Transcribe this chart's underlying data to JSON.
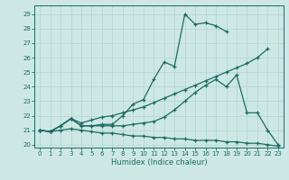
{
  "title": "",
  "xlabel": "Humidex (Indice chaleur)",
  "bg_color": "#cde8e4",
  "line_color": "#1a6b60",
  "grid_color": "#b0d4cf",
  "xlim": [
    -0.5,
    23.5
  ],
  "ylim": [
    19.8,
    29.6
  ],
  "yticks": [
    20,
    21,
    22,
    23,
    24,
    25,
    26,
    27,
    28,
    29
  ],
  "xticks": [
    0,
    1,
    2,
    3,
    4,
    5,
    6,
    7,
    8,
    9,
    10,
    11,
    12,
    13,
    14,
    15,
    16,
    17,
    18,
    19,
    20,
    21,
    22,
    23
  ],
  "line1_x": [
    0,
    1,
    2,
    3,
    4,
    5,
    6,
    7,
    8,
    9,
    10,
    11,
    12,
    13,
    14,
    15,
    16,
    17,
    18
  ],
  "line1_y": [
    21.0,
    20.9,
    21.3,
    21.8,
    21.3,
    21.3,
    21.4,
    21.4,
    22.0,
    22.8,
    23.1,
    24.5,
    25.7,
    25.4,
    29.0,
    28.3,
    28.4,
    28.2,
    27.8
  ],
  "line2_x": [
    0,
    1,
    2,
    3,
    4,
    5,
    6,
    7,
    8,
    9,
    10,
    11,
    12,
    13,
    14,
    15,
    16,
    17,
    18,
    19,
    20,
    21,
    22
  ],
  "line2_y": [
    21.0,
    20.9,
    21.3,
    21.8,
    21.5,
    21.7,
    21.9,
    22.0,
    22.2,
    22.4,
    22.6,
    22.9,
    23.2,
    23.5,
    23.8,
    24.1,
    24.4,
    24.7,
    25.0,
    25.3,
    25.6,
    26.0,
    26.6
  ],
  "line3_x": [
    0,
    1,
    2,
    3,
    4,
    5,
    6,
    7,
    8,
    9,
    10,
    11,
    12,
    13,
    14,
    15,
    16,
    17,
    18,
    19,
    20,
    21,
    22,
    23
  ],
  "line3_y": [
    21.0,
    20.9,
    21.3,
    21.8,
    21.3,
    21.3,
    21.3,
    21.3,
    21.3,
    21.4,
    21.5,
    21.6,
    21.9,
    22.4,
    23.0,
    23.6,
    24.1,
    24.5,
    24.0,
    24.8,
    22.2,
    22.2,
    21.0,
    20.0
  ],
  "line4_x": [
    0,
    1,
    2,
    3,
    4,
    5,
    6,
    7,
    8,
    9,
    10,
    11,
    12,
    13,
    14,
    15,
    16,
    17,
    18,
    19,
    20,
    21,
    22,
    23
  ],
  "line4_y": [
    21.0,
    20.9,
    21.0,
    21.1,
    21.0,
    20.9,
    20.8,
    20.8,
    20.7,
    20.6,
    20.6,
    20.5,
    20.5,
    20.4,
    20.4,
    20.3,
    20.3,
    20.3,
    20.2,
    20.2,
    20.1,
    20.1,
    20.0,
    19.9
  ],
  "figw": 3.2,
  "figh": 2.0,
  "dpi": 100
}
